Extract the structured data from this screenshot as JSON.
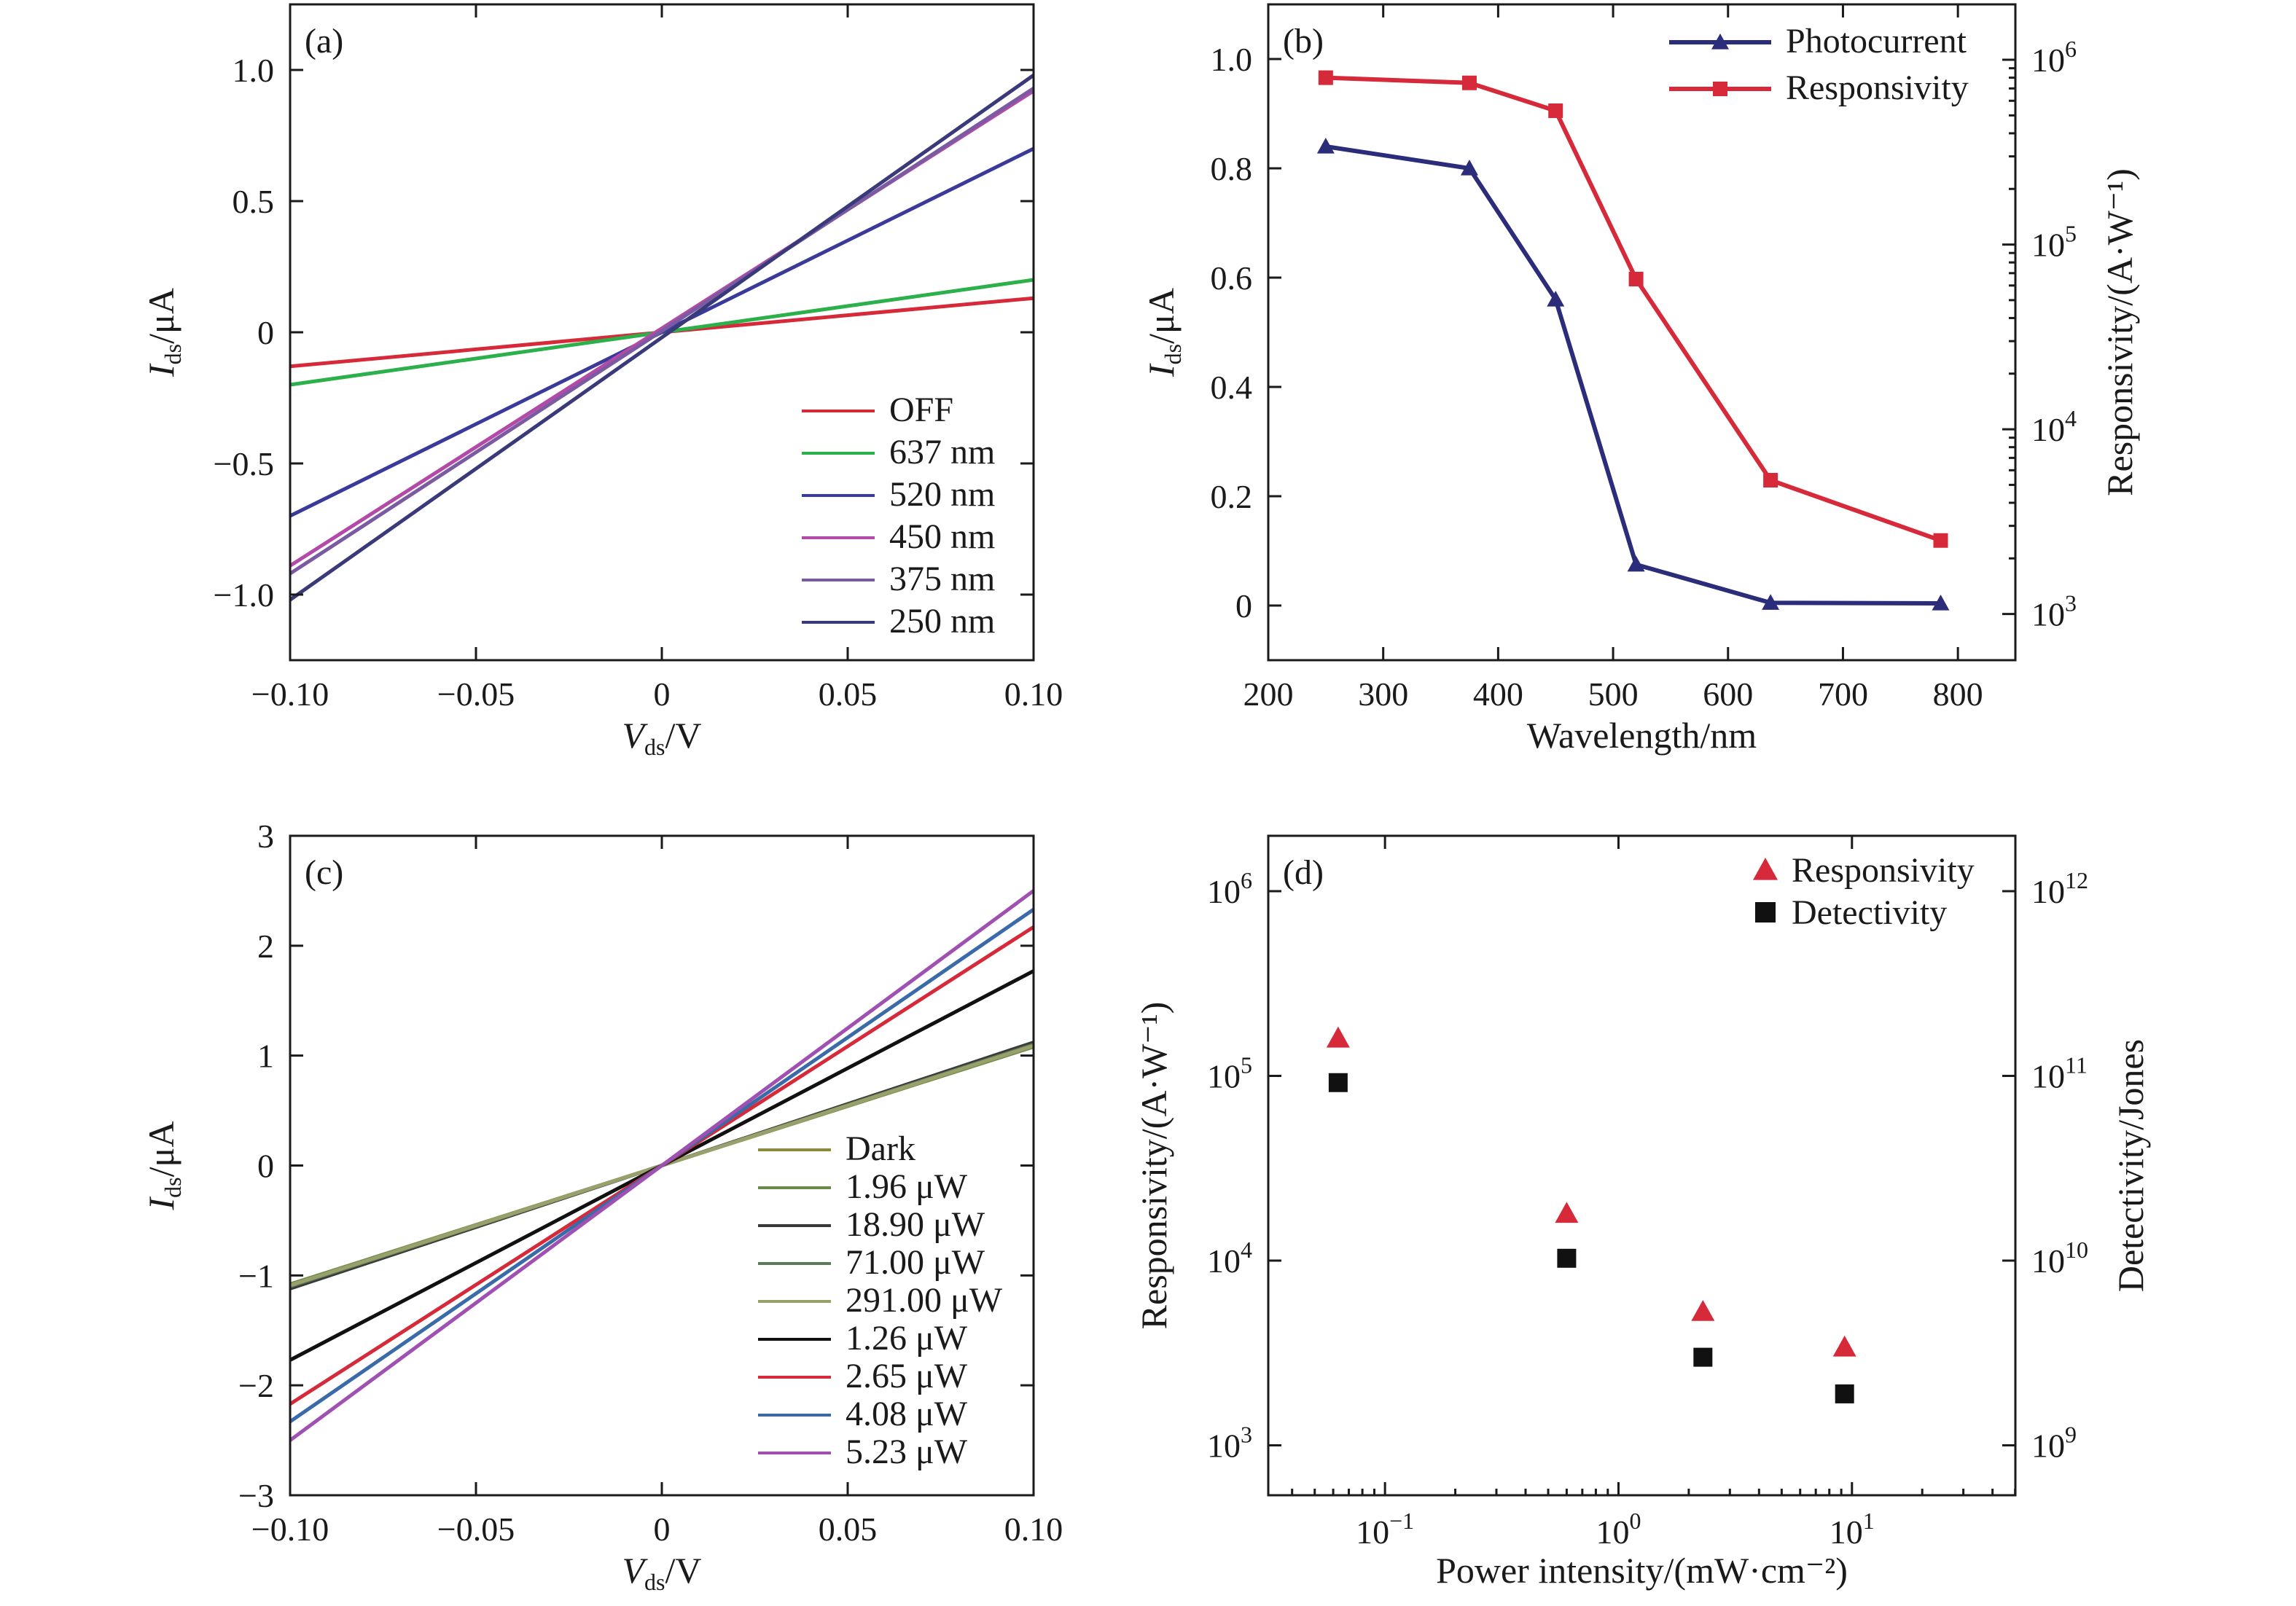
{
  "chart_data": [
    {
      "panel": "(a)",
      "type": "line",
      "xlabel": {
        "main": "V",
        "sub": "ds",
        "unit": "/V"
      },
      "ylabel": {
        "main": "I",
        "sub": "ds",
        "unit": "/μA"
      },
      "xlim": [
        -0.1,
        0.1
      ],
      "ylim": [
        -1.25,
        1.25
      ],
      "xticks": [
        {
          "v": -0.1,
          "label": "−0.10"
        },
        {
          "v": -0.05,
          "label": "−0.05"
        },
        {
          "v": 0,
          "label": "0"
        },
        {
          "v": 0.05,
          "label": "0.05"
        },
        {
          "v": 0.1,
          "label": "0.10"
        }
      ],
      "yticks": [
        {
          "v": -1.0,
          "label": "−1.0"
        },
        {
          "v": -0.5,
          "label": "−0.5"
        },
        {
          "v": 0,
          "label": "0"
        },
        {
          "v": 0.5,
          "label": "0.5"
        },
        {
          "v": 1.0,
          "label": "1.0"
        }
      ],
      "legend_position": "bottom-right",
      "series": [
        {
          "name": "OFF",
          "color": "#d62a3a",
          "x": [
            -0.1,
            0.1
          ],
          "y": [
            -0.13,
            0.13
          ]
        },
        {
          "name": "637 nm",
          "color": "#2bb04a",
          "x": [
            -0.1,
            0.1
          ],
          "y": [
            -0.2,
            0.2
          ]
        },
        {
          "name": "520 nm",
          "color": "#3a3a9a",
          "x": [
            -0.1,
            0.1
          ],
          "y": [
            -0.7,
            0.7
          ]
        },
        {
          "name": "450 nm",
          "color": "#b44aa8",
          "x": [
            -0.1,
            0.1
          ],
          "y": [
            -0.89,
            0.92
          ]
        },
        {
          "name": "375 nm",
          "color": "#7a5aa0",
          "x": [
            -0.1,
            0.1
          ],
          "y": [
            -0.92,
            0.93
          ]
        },
        {
          "name": "250 nm",
          "color": "#3a3a7a",
          "x": [
            -0.1,
            0.1
          ],
          "y": [
            -1.02,
            0.98
          ]
        }
      ]
    },
    {
      "panel": "(b)",
      "type": "line",
      "xlabel": "Wavelength/nm",
      "ylabel": {
        "main": "I",
        "sub": "ds",
        "unit": "/μA"
      },
      "ylabel_right": "Responsivity/(A·W⁻¹)",
      "xlim": [
        200,
        850
      ],
      "ylim": [
        -0.1,
        1.1
      ],
      "y2lim_log10": [
        2.75,
        6.3
      ],
      "y2scale": "log",
      "xticks": [
        200,
        300,
        400,
        500,
        600,
        700,
        800
      ],
      "yticks": [
        {
          "v": 0,
          "label": "0"
        },
        {
          "v": 0.2,
          "label": "0.2"
        },
        {
          "v": 0.4,
          "label": "0.4"
        },
        {
          "v": 0.6,
          "label": "0.6"
        },
        {
          "v": 0.8,
          "label": "0.8"
        },
        {
          "v": 1.0,
          "label": "1.0"
        }
      ],
      "y2ticks": [
        {
          "exp": 3,
          "label": "10",
          "sup": "3"
        },
        {
          "exp": 4,
          "label": "10",
          "sup": "4"
        },
        {
          "exp": 5,
          "label": "10",
          "sup": "5"
        },
        {
          "exp": 6,
          "label": "10",
          "sup": "6"
        }
      ],
      "legend_position": "top-right",
      "series": [
        {
          "name": "Photocurrent",
          "axis": "left",
          "marker": "triangle",
          "color": "#2b2c7a",
          "x": [
            250,
            375,
            450,
            520,
            637,
            785
          ],
          "y": [
            0.84,
            0.8,
            0.56,
            0.075,
            0.005,
            0.004
          ]
        },
        {
          "name": "Responsivity",
          "axis": "right",
          "marker": "square",
          "color": "#d62a3a",
          "x": [
            250,
            375,
            450,
            520,
            637,
            785
          ],
          "y": [
            800000,
            750000,
            530000,
            65000,
            5300,
            2500
          ]
        }
      ]
    },
    {
      "panel": "(c)",
      "type": "line",
      "xlabel": {
        "main": "V",
        "sub": "ds",
        "unit": "/V"
      },
      "ylabel": {
        "main": "I",
        "sub": "ds",
        "unit": "/μA"
      },
      "xlim": [
        -0.1,
        0.1
      ],
      "ylim": [
        -3,
        3
      ],
      "xticks": [
        {
          "v": -0.1,
          "label": "−0.10"
        },
        {
          "v": -0.05,
          "label": "−0.05"
        },
        {
          "v": 0,
          "label": "0"
        },
        {
          "v": 0.05,
          "label": "0.05"
        },
        {
          "v": 0.1,
          "label": "0.10"
        }
      ],
      "yticks": [
        {
          "v": -3,
          "label": "−3"
        },
        {
          "v": -2,
          "label": "−2"
        },
        {
          "v": -1,
          "label": "−1"
        },
        {
          "v": 0,
          "label": "0"
        },
        {
          "v": 1,
          "label": "1"
        },
        {
          "v": 2,
          "label": "2"
        },
        {
          "v": 3,
          "label": "3"
        }
      ],
      "legend_position": "bottom-right",
      "series": [
        {
          "name": "Dark",
          "color": "#8a8a3a",
          "x": [
            -0.1,
            0.1
          ],
          "y": [
            -1.1,
            1.1
          ]
        },
        {
          "name": "1.96 μW",
          "color": "#6a8a4a",
          "x": [
            -0.1,
            0.1
          ],
          "y": [
            -1.08,
            1.08
          ]
        },
        {
          "name": "18.90 μW",
          "color": "#3a3a3a",
          "x": [
            -0.1,
            0.1
          ],
          "y": [
            -1.12,
            1.12
          ]
        },
        {
          "name": "71.00 μW",
          "color": "#5a7a5a",
          "x": [
            -0.1,
            0.1
          ],
          "y": [
            -1.1,
            1.1
          ]
        },
        {
          "name": "291.00 μW",
          "color": "#9aa06a",
          "x": [
            -0.1,
            0.1
          ],
          "y": [
            -1.09,
            1.09
          ]
        },
        {
          "name": "1.26 μW",
          "color": "#111111",
          "x": [
            -0.1,
            0.1
          ],
          "y": [
            -1.77,
            1.77
          ]
        },
        {
          "name": "2.65 μW",
          "color": "#d62a3a",
          "x": [
            -0.1,
            0.1
          ],
          "y": [
            -2.17,
            2.17
          ]
        },
        {
          "name": "4.08 μW",
          "color": "#3a6aa8",
          "x": [
            -0.1,
            0.1
          ],
          "y": [
            -2.33,
            2.33
          ]
        },
        {
          "name": "5.23 μW",
          "color": "#a050b0",
          "x": [
            -0.1,
            0.1
          ],
          "y": [
            -2.5,
            2.5
          ]
        }
      ]
    },
    {
      "panel": "(d)",
      "type": "scatter",
      "xlabel": "Power intensity/(mW·cm⁻²)",
      "ylabel": "Responsivity/(A·W⁻¹)",
      "ylabel_right": "Detectivity/Jones",
      "xscale": "log",
      "yscale": "log",
      "xlim_log10": [
        -1.5,
        1.7
      ],
      "ylim_log10": [
        2.73,
        6.3
      ],
      "y2lim_log10": [
        8.73,
        12.3
      ],
      "xticks": [
        {
          "exp": -1,
          "label": "10",
          "sup": "−1"
        },
        {
          "exp": 0,
          "label": "10",
          "sup": "0"
        },
        {
          "exp": 1,
          "label": "10",
          "sup": "1"
        }
      ],
      "yticks": [
        {
          "exp": 3,
          "label": "10",
          "sup": "3"
        },
        {
          "exp": 4,
          "label": "10",
          "sup": "4"
        },
        {
          "exp": 5,
          "label": "10",
          "sup": "5"
        },
        {
          "exp": 6,
          "label": "10",
          "sup": "6"
        }
      ],
      "y2ticks": [
        {
          "exp": 9,
          "label": "10",
          "sup": "9"
        },
        {
          "exp": 10,
          "label": "10",
          "sup": "10"
        },
        {
          "exp": 11,
          "label": "10",
          "sup": "11"
        },
        {
          "exp": 12,
          "label": "10",
          "sup": "12"
        }
      ],
      "legend_position": "top-right",
      "series": [
        {
          "name": "Responsivity",
          "axis": "left",
          "marker": "triangle",
          "color": "#d62a3a",
          "x": [
            0.063,
            0.6,
            2.3,
            9.3
          ],
          "y": [
            160000,
            18000,
            5300,
            3400
          ]
        },
        {
          "name": "Detectivity",
          "axis": "right",
          "marker": "square",
          "color": "#111111",
          "x": [
            0.063,
            0.6,
            2.3,
            9.3
          ],
          "y": [
            92000000000,
            10300000000,
            3000000000,
            1900000000
          ]
        }
      ]
    }
  ]
}
